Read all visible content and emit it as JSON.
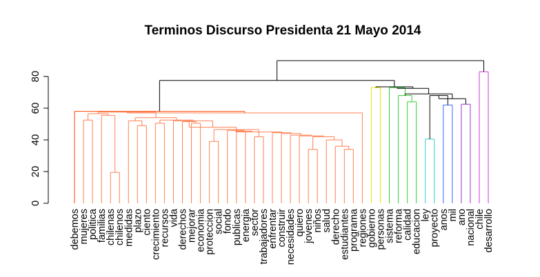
{
  "chart_data": {
    "type": "dendrogram",
    "title": "Terminos Discurso Presidenta 21 Mayo 2014",
    "xlabel": "",
    "ylabel": "",
    "ylim": [
      0,
      90
    ],
    "yticks": [
      0,
      20,
      40,
      60,
      80
    ],
    "grid": false,
    "leaves": [
      "debemos",
      "mujeres",
      "politica",
      "familias",
      "chilenas",
      "chilenos",
      "medidas",
      "plazo",
      "ciento",
      "crecimiento",
      "recursos",
      "vida",
      "derechos",
      "mejorar",
      "economia",
      "proteccion",
      "social",
      "fondo",
      "publicas",
      "energia",
      "sector",
      "trabajadores",
      "enfrentar",
      "construir",
      "necesidades",
      "quiero",
      "jovenes",
      "niños",
      "salud",
      "derecho",
      "estudiantes",
      "programa",
      "regiones",
      "gobierno",
      "personas",
      "sistema",
      "reforma",
      "calidad",
      "educacion",
      "ley",
      "proyecto",
      "anos",
      "mil",
      "ano",
      "nacional",
      "chile",
      "desarrollo"
    ],
    "merges": [
      {
        "a": "chilenas",
        "b": "chilenos",
        "height": 19.5,
        "color": "#FF7F50"
      },
      {
        "a": "familias",
        "b": [
          "chilenas",
          "chilenos"
        ],
        "height": 55.5,
        "color": "#FF7F50"
      },
      {
        "a": "mujeres",
        "b": "politica",
        "height": 52.5,
        "color": "#FF7F50"
      },
      {
        "a": [
          "mujeres",
          "politica"
        ],
        "b": [
          "familias",
          "chilenas",
          "chilenos"
        ],
        "height": 56.5,
        "color": "#FF7F50"
      },
      {
        "a": "plazo",
        "b": "ciento",
        "height": 49.0,
        "color": "#FF7F50"
      },
      {
        "a": "medidas",
        "b": [
          "plazo",
          "ciento"
        ],
        "height": 52.0,
        "color": "#FF7F50"
      },
      {
        "a": "crecimiento",
        "b": "recursos",
        "height": 50.5,
        "color": "#FF7F50"
      },
      {
        "a": "mejorar",
        "b": "economia",
        "height": 50.5,
        "color": "#FF7F50"
      },
      {
        "a": "derechos",
        "b": [
          "mejorar",
          "economia"
        ],
        "height": 51.5,
        "color": "#FF7F50"
      },
      {
        "a": "proteccion",
        "b": "social",
        "height": 39.0,
        "color": "#FF7F50"
      },
      {
        "a": "sector",
        "b": "trabajadores",
        "height": 42.0,
        "color": "#FF7F50"
      },
      {
        "a": "energia",
        "b": [
          "sector",
          "trabajadores"
        ],
        "height": 45.0,
        "color": "#FF7F50"
      },
      {
        "a": "jovenes",
        "b": "niños",
        "height": 34.0,
        "color": "#FF7F50"
      },
      {
        "a": "estudiantes",
        "b": "programa",
        "height": 34.0,
        "color": "#FF7F50"
      },
      {
        "a": "derecho",
        "b": [
          "estudiantes",
          "programa"
        ],
        "height": 36.0,
        "color": "#FF7F50"
      },
      {
        "a": "salud",
        "b": [
          "derecho",
          "estudiantes",
          "programa"
        ],
        "height": 40.0,
        "color": "#FF7F50"
      },
      {
        "a": [
          "jovenes",
          "niños"
        ],
        "b": [
          "salud",
          "derecho",
          "estudiantes",
          "programa"
        ],
        "height": 42.0,
        "color": "#FF7F50"
      },
      {
        "a": "regiones",
        "b": "rest-of-orange-cluster",
        "height": 57.0,
        "color": "#FF7F50"
      },
      {
        "a": "debemos",
        "b": "orange-cluster",
        "height": 58.0,
        "color": "#FF4500"
      },
      {
        "a": "gobierno",
        "b": "personas",
        "height": 73.0,
        "color": "#E6E600"
      },
      {
        "a": "calidad",
        "b": "educacion",
        "height": 64.0,
        "color": "#33CC33"
      },
      {
        "a": "reforma",
        "b": [
          "calidad",
          "educacion"
        ],
        "height": 68.0,
        "color": "#33CC33"
      },
      {
        "a": "ley",
        "b": "proyecto",
        "height": 40.5,
        "color": "#33CCCC"
      },
      {
        "a": "anos",
        "b": "mil",
        "height": 62.0,
        "color": "#3366FF"
      },
      {
        "a": "ano",
        "b": "nacional",
        "height": 62.5,
        "color": "#9933CC"
      },
      {
        "a": "chile",
        "b": "desarrollo",
        "height": 83.0,
        "color": "#CC33CC"
      },
      {
        "a": "left-group",
        "b": "right-group",
        "height": 78.0,
        "color": "#000000"
      },
      {
        "a": "all",
        "b": "root",
        "height": 90.0,
        "color": "#000000"
      }
    ]
  }
}
